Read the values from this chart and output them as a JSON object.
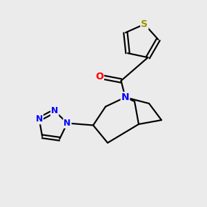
{
  "background_color": "#ebebeb",
  "bond_color": "#000000",
  "bond_width": 1.6,
  "atom_colors": {
    "S": "#999900",
    "O": "#ff0000",
    "N": "#0000ff",
    "C": "#000000"
  },
  "figure_size": [
    3.0,
    3.0
  ],
  "dpi": 100,
  "xlim": [
    0,
    10
  ],
  "ylim": [
    0,
    10
  ]
}
